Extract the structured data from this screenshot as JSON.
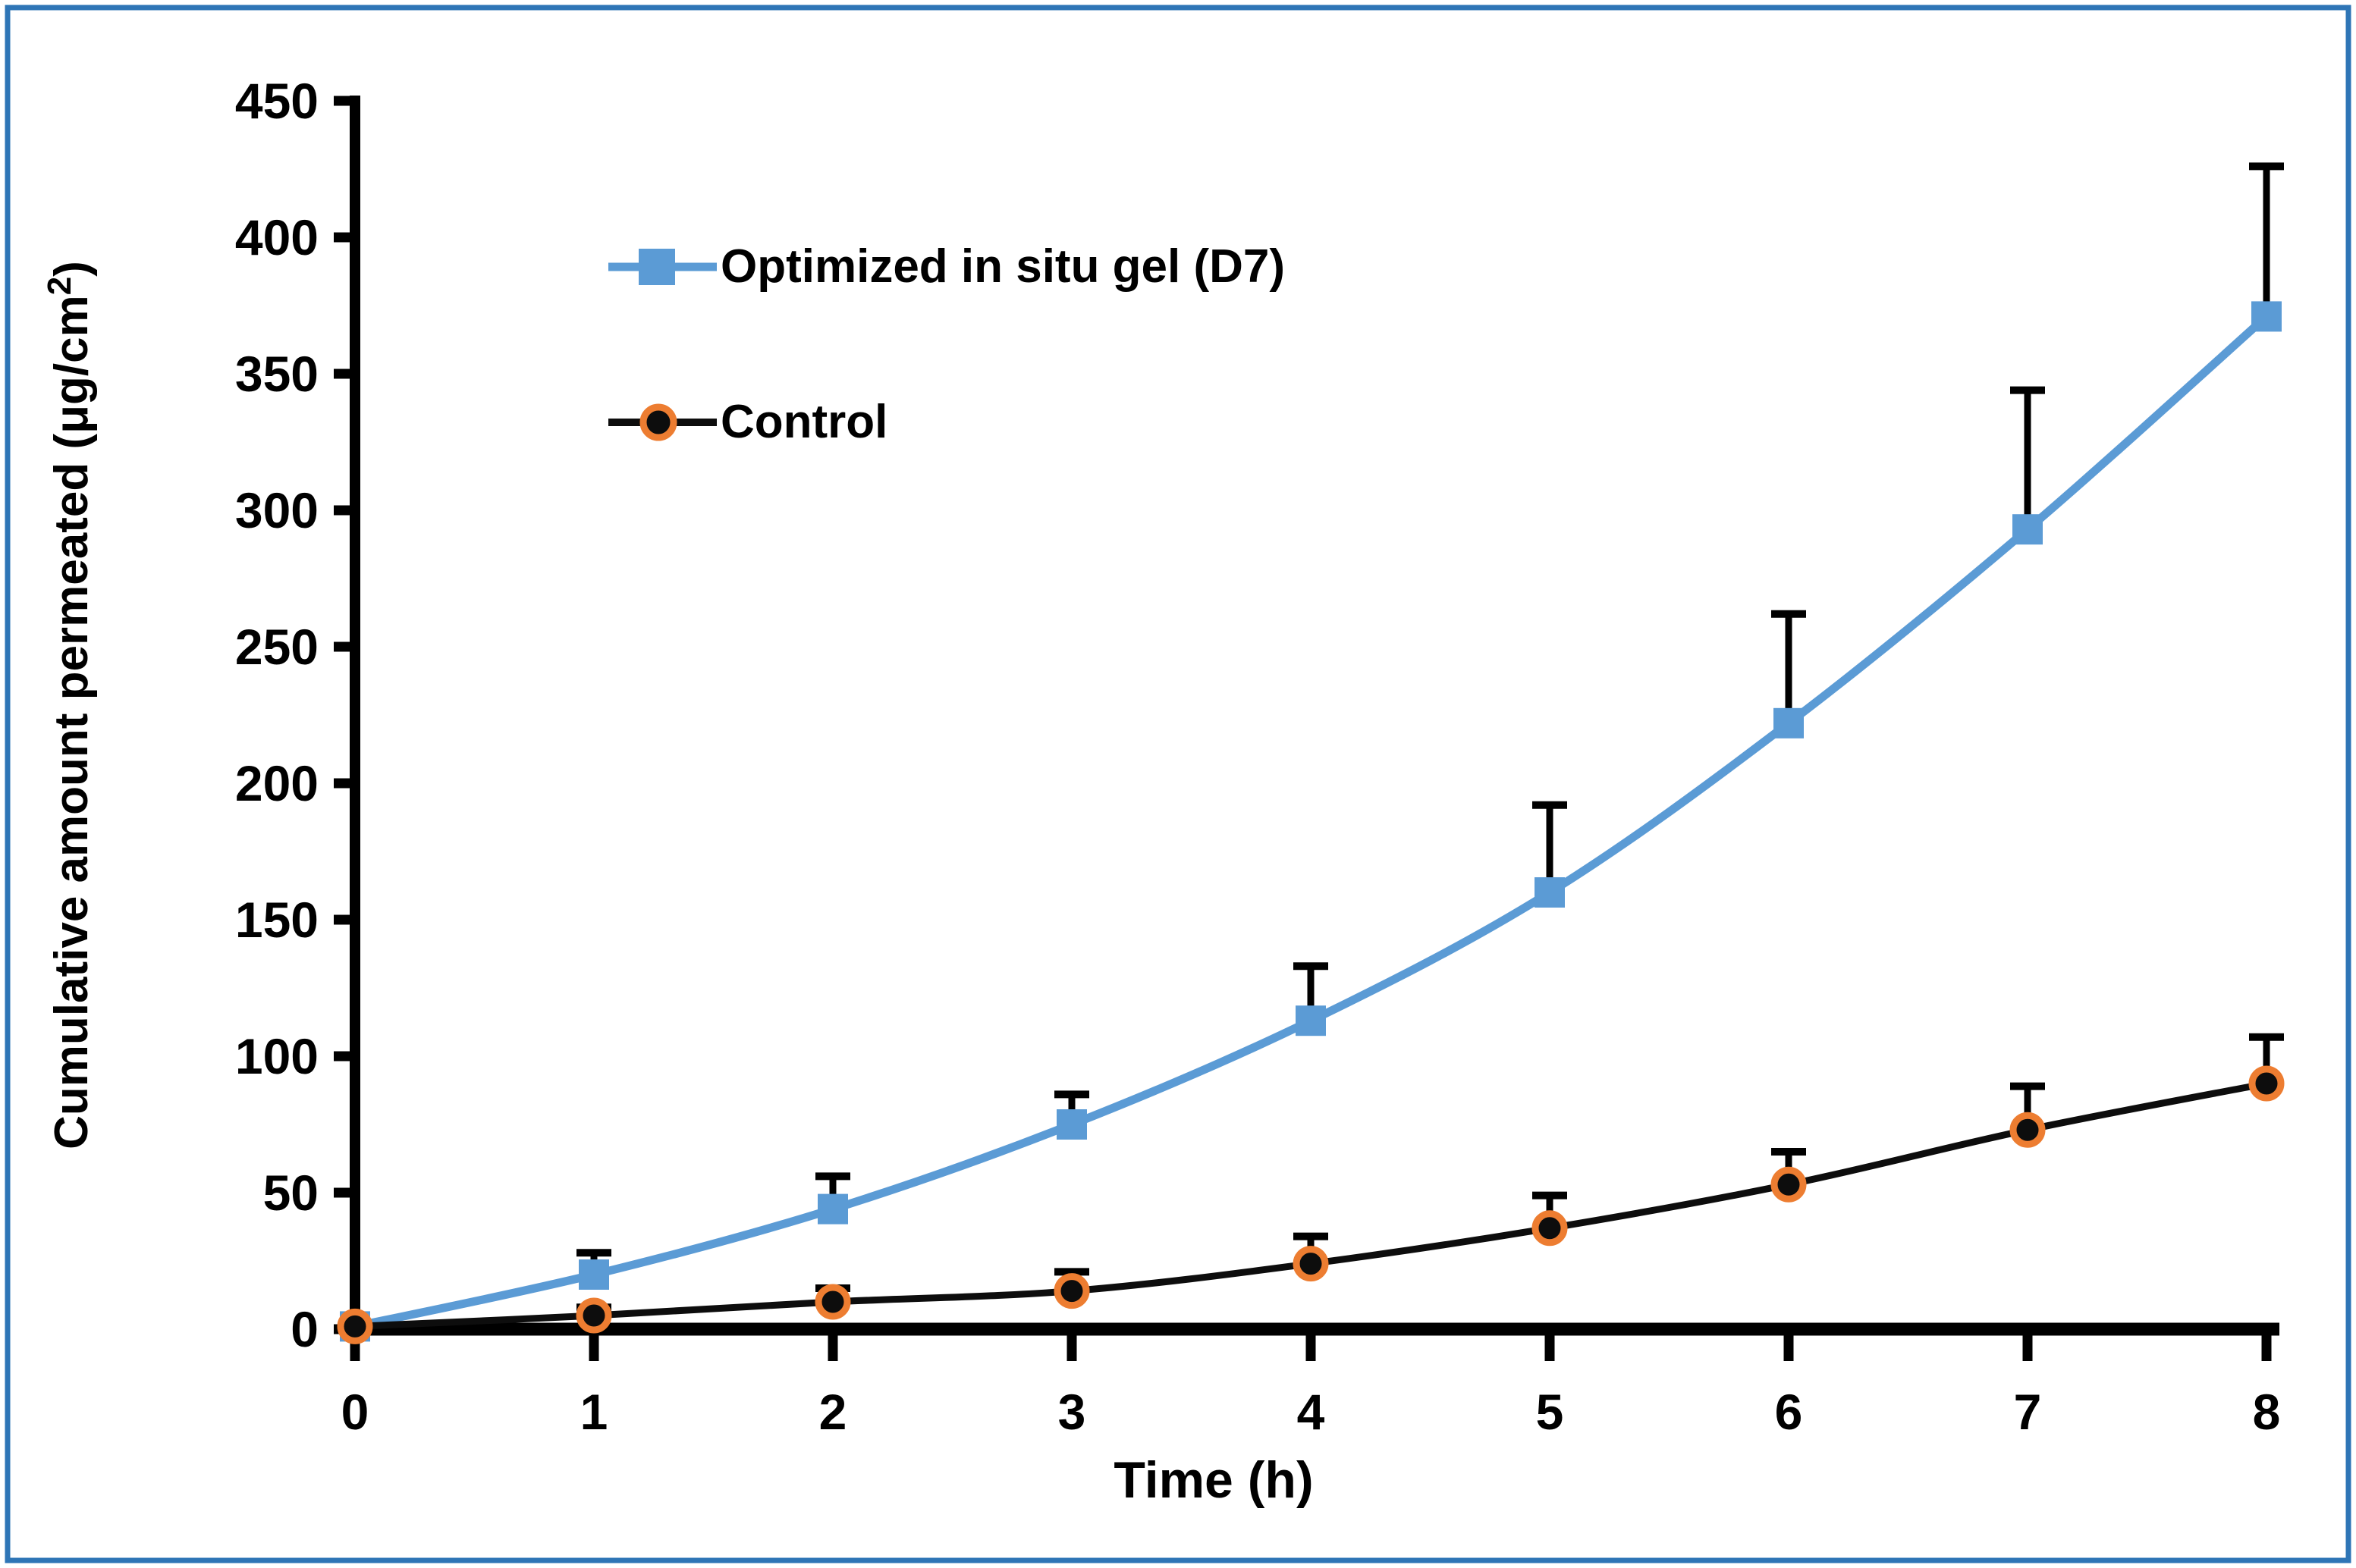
{
  "figure": {
    "border_color": "#2E75B6",
    "background_color": "#FFFFFF",
    "text_color": "#000000"
  },
  "legend": {
    "position": "inside-top-left"
  },
  "chart_data": {
    "type": "line",
    "title": "",
    "xlabel": "Time (h)",
    "ylabel": "Cumulative amount permeated (μg/cm²)",
    "ylabel_parts": {
      "prefix": "Cumulative amount permeated (μg/cm",
      "superscript": "2",
      "suffix": ")"
    },
    "x": [
      0,
      1,
      2,
      3,
      4,
      5,
      6,
      7,
      8
    ],
    "x_tick_labels": [
      "0",
      "1",
      "2",
      "3",
      "4",
      "5",
      "6",
      "7",
      "8"
    ],
    "y_ticks": [
      0,
      50,
      100,
      150,
      200,
      250,
      300,
      350,
      400,
      450
    ],
    "xlim": [
      0,
      8
    ],
    "ylim": [
      0,
      450
    ],
    "grid": false,
    "line_smoothing": "smooth",
    "error_bars": "upper-only",
    "error_bar_color": "#000000",
    "series": [
      {
        "name": "Optimized in situ gel (D7)",
        "color": "#5B9BD5",
        "marker": "square",
        "values": [
          1,
          20,
          44,
          75,
          113,
          160,
          222,
          293,
          371
        ],
        "error_up": [
          0,
          8,
          12,
          11,
          20,
          32,
          40,
          51,
          55
        ]
      },
      {
        "name": "Control",
        "color": "#0D0D0D",
        "marker": "circle",
        "marker_fill": "#0D0D0D",
        "marker_ring": "#ED7D31",
        "values": [
          1,
          5,
          10,
          14,
          24,
          37,
          53,
          73,
          90
        ],
        "error_up": [
          0,
          3,
          5,
          7,
          10,
          12,
          12,
          16,
          17
        ]
      }
    ]
  }
}
